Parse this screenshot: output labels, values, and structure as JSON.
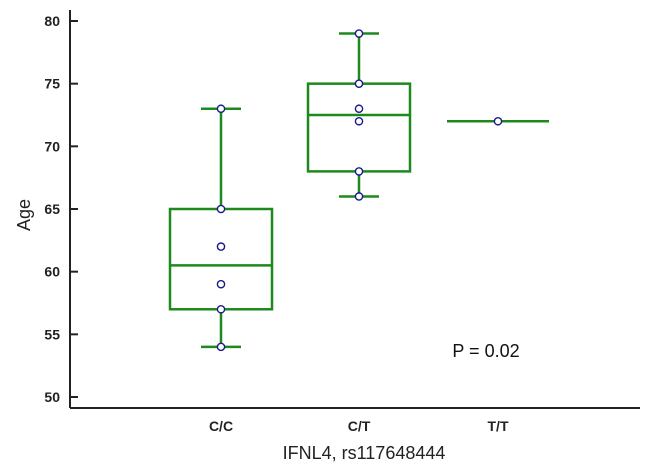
{
  "chart_data": {
    "type": "box",
    "xlabel": "IFNL4, rs117648444",
    "ylabel": "Age",
    "ylim": [
      50,
      80
    ],
    "yticks": [
      50,
      55,
      60,
      65,
      70,
      75,
      80
    ],
    "categories": [
      "C/C",
      "C/T",
      "T/T"
    ],
    "boxes": [
      {
        "category": "C/C",
        "min": 54,
        "q1": 57,
        "median": 60.5,
        "q3": 65,
        "max": 73,
        "points": [
          73,
          65,
          62,
          59,
          57,
          54
        ]
      },
      {
        "category": "C/T",
        "min": 66,
        "q1": 68,
        "median": 72.5,
        "q3": 75,
        "max": 79,
        "points": [
          79,
          75,
          73,
          72,
          68,
          66
        ]
      },
      {
        "category": "T/T",
        "min": 72,
        "q1": 72,
        "median": 72,
        "q3": 72,
        "max": 72,
        "points": [
          72
        ]
      }
    ],
    "annotation": "P = 0.02",
    "colors": {
      "box": "#1e8a1e",
      "point_stroke": "#1a1a8c",
      "point_fill": "#ffffff",
      "axis": "#222222"
    }
  }
}
